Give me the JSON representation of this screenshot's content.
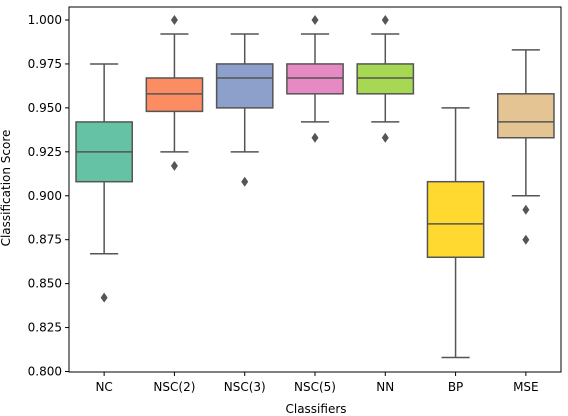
{
  "chart_data": {
    "type": "box",
    "xlabel": "Classifiers",
    "ylabel": "Classification Score",
    "ylim": [
      0.8,
      1.0
    ],
    "yticks": [
      "0.800",
      "0.825",
      "0.850",
      "0.875",
      "0.900",
      "0.925",
      "0.950",
      "0.975",
      "1.000"
    ],
    "ytick_values": [
      0.8,
      0.825,
      0.85,
      0.875,
      0.9,
      0.925,
      0.95,
      0.975,
      1.0
    ],
    "grid": false,
    "categories": [
      "NC",
      "NSC(2)",
      "NSC(3)",
      "NSC(5)",
      "NN",
      "BP",
      "MSE"
    ],
    "colors": [
      "#66c2a5",
      "#fc8d62",
      "#8da0cb",
      "#e78ac3",
      "#a6d854",
      "#ffd92f",
      "#e5c494"
    ],
    "edge_color": "#555555",
    "boxes": [
      {
        "whisker_low": 0.867,
        "q1": 0.908,
        "median": 0.925,
        "q3": 0.942,
        "whisker_high": 0.975,
        "outliers": [
          0.842
        ]
      },
      {
        "whisker_low": 0.925,
        "q1": 0.948,
        "median": 0.958,
        "q3": 0.967,
        "whisker_high": 0.992,
        "outliers": [
          0.917,
          1.0
        ]
      },
      {
        "whisker_low": 0.925,
        "q1": 0.95,
        "median": 0.967,
        "q3": 0.975,
        "whisker_high": 0.992,
        "outliers": [
          0.908
        ]
      },
      {
        "whisker_low": 0.942,
        "q1": 0.958,
        "median": 0.967,
        "q3": 0.975,
        "whisker_high": 0.992,
        "outliers": [
          0.933,
          1.0
        ]
      },
      {
        "whisker_low": 0.942,
        "q1": 0.958,
        "median": 0.967,
        "q3": 0.975,
        "whisker_high": 0.992,
        "outliers": [
          0.933,
          1.0
        ]
      },
      {
        "whisker_low": 0.808,
        "q1": 0.865,
        "median": 0.884,
        "q3": 0.908,
        "whisker_high": 0.95,
        "outliers": []
      },
      {
        "whisker_low": 0.9,
        "q1": 0.933,
        "median": 0.942,
        "q3": 0.958,
        "whisker_high": 0.983,
        "outliers": [
          0.875,
          0.892
        ]
      }
    ]
  }
}
